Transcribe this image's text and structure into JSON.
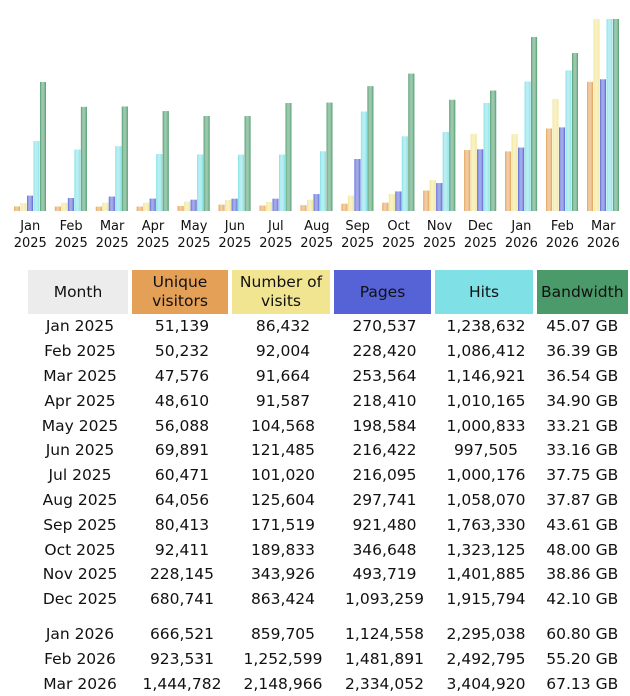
{
  "colors": {
    "unique_visitors": "#e3a056",
    "visits": "#f1e592",
    "pages": "#5563d6",
    "hits": "#7fe0e6",
    "bandwidth": "#4a9a6a"
  },
  "chart_data": {
    "type": "bar",
    "categories": [
      [
        "Jan",
        "2025"
      ],
      [
        "Feb",
        "2025"
      ],
      [
        "Mar",
        "2025"
      ],
      [
        "Apr",
        "2025"
      ],
      [
        "May",
        "2025"
      ],
      [
        "Jun",
        "2025"
      ],
      [
        "Jul",
        "2025"
      ],
      [
        "Aug",
        "2025"
      ],
      [
        "Sep",
        "2025"
      ],
      [
        "Oct",
        "2025"
      ],
      [
        "Nov",
        "2025"
      ],
      [
        "Dec",
        "2025"
      ],
      [
        "Jan",
        "2026"
      ],
      [
        "Feb",
        "2026"
      ],
      [
        "Mar",
        "2026"
      ]
    ],
    "series": [
      {
        "name": "Unique visitors",
        "values": [
          51139,
          50232,
          47576,
          48610,
          56088,
          69891,
          60471,
          64056,
          80413,
          92411,
          228145,
          680741,
          666521,
          923531,
          1444782
        ]
      },
      {
        "name": "Number of visits",
        "values": [
          86432,
          92004,
          91664,
          91587,
          104568,
          121485,
          101020,
          125604,
          171519,
          189833,
          343926,
          863424,
          859705,
          1252599,
          2148966
        ]
      },
      {
        "name": "Pages",
        "values": [
          270537,
          228420,
          253564,
          218410,
          198584,
          216422,
          216095,
          297741,
          921480,
          346648,
          493719,
          1093259,
          1124558,
          1481891,
          2334052
        ]
      },
      {
        "name": "Hits",
        "values": [
          1238632,
          1086412,
          1146921,
          1010165,
          1000833,
          997505,
          1000176,
          1058070,
          1763330,
          1323125,
          1401885,
          1915794,
          2295038,
          2492795,
          3404920
        ]
      },
      {
        "name": "Bandwidth",
        "values": [
          45.07,
          36.39,
          36.54,
          34.9,
          33.21,
          33.16,
          37.75,
          37.87,
          43.61,
          48.0,
          38.86,
          42.1,
          60.8,
          55.2,
          67.13
        ]
      }
    ]
  },
  "table": {
    "headers": {
      "month": "Month",
      "unique": [
        "Unique",
        "visitors"
      ],
      "visits": [
        "Number of",
        "visits"
      ],
      "pages": "Pages",
      "hits": "Hits",
      "bandwidth": "Bandwidth"
    },
    "rows": [
      [
        "Jan 2025",
        "51,139",
        "86,432",
        "270,537",
        "1,238,632",
        "45.07 GB"
      ],
      [
        "Feb 2025",
        "50,232",
        "92,004",
        "228,420",
        "1,086,412",
        "36.39 GB"
      ],
      [
        "Mar 2025",
        "47,576",
        "91,664",
        "253,564",
        "1,146,921",
        "36.54 GB"
      ],
      [
        "Apr 2025",
        "48,610",
        "91,587",
        "218,410",
        "1,010,165",
        "34.90 GB"
      ],
      [
        "May 2025",
        "56,088",
        "104,568",
        "198,584",
        "1,000,833",
        "33.21 GB"
      ],
      [
        "Jun 2025",
        "69,891",
        "121,485",
        "216,422",
        "997,505",
        "33.16 GB"
      ],
      [
        "Jul 2025",
        "60,471",
        "101,020",
        "216,095",
        "1,000,176",
        "37.75 GB"
      ],
      [
        "Aug 2025",
        "64,056",
        "125,604",
        "297,741",
        "1,058,070",
        "37.87 GB"
      ],
      [
        "Sep 2025",
        "80,413",
        "171,519",
        "921,480",
        "1,763,330",
        "43.61 GB"
      ],
      [
        "Oct 2025",
        "92,411",
        "189,833",
        "346,648",
        "1,323,125",
        "48.00 GB"
      ],
      [
        "Nov 2025",
        "228,145",
        "343,926",
        "493,719",
        "1,401,885",
        "38.86 GB"
      ],
      [
        "Dec 2025",
        "680,741",
        "863,424",
        "1,093,259",
        "1,915,794",
        "42.10 GB"
      ],
      [
        "Jan 2026",
        "666,521",
        "859,705",
        "1,124,558",
        "2,295,038",
        "60.80 GB"
      ],
      [
        "Feb 2026",
        "923,531",
        "1,252,599",
        "1,481,891",
        "2,492,795",
        "55.20 GB"
      ],
      [
        "Mar 2026",
        "1,444,782",
        "2,148,966",
        "2,334,052",
        "3,404,920",
        "67.13 GB"
      ]
    ]
  }
}
